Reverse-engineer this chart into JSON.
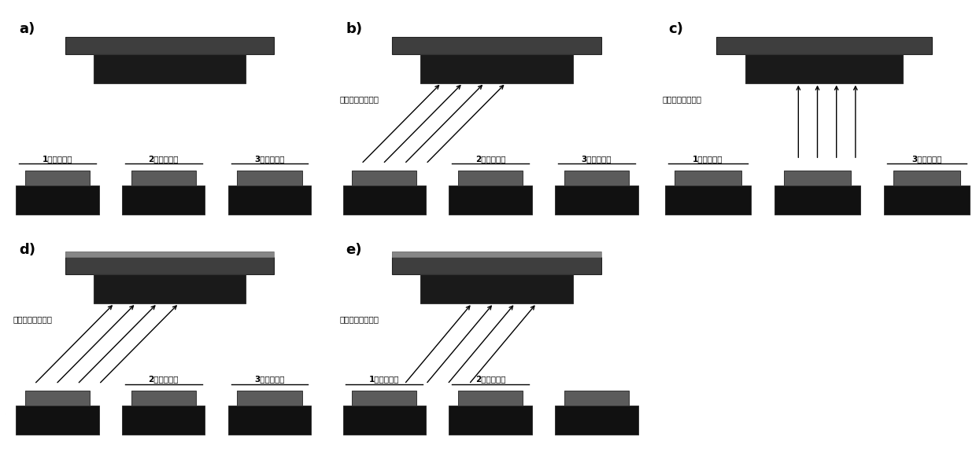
{
  "bg_color": "#ffffff",
  "panel_label_fontsize": 13,
  "label_fontsize": 7.5,
  "text_color": "#000000",
  "label_text": "溅射出的靶材物质",
  "block_labels": {
    "1": "1号金属挡板",
    "2": "2号金属挡板",
    "3": "3号金属挡板"
  }
}
